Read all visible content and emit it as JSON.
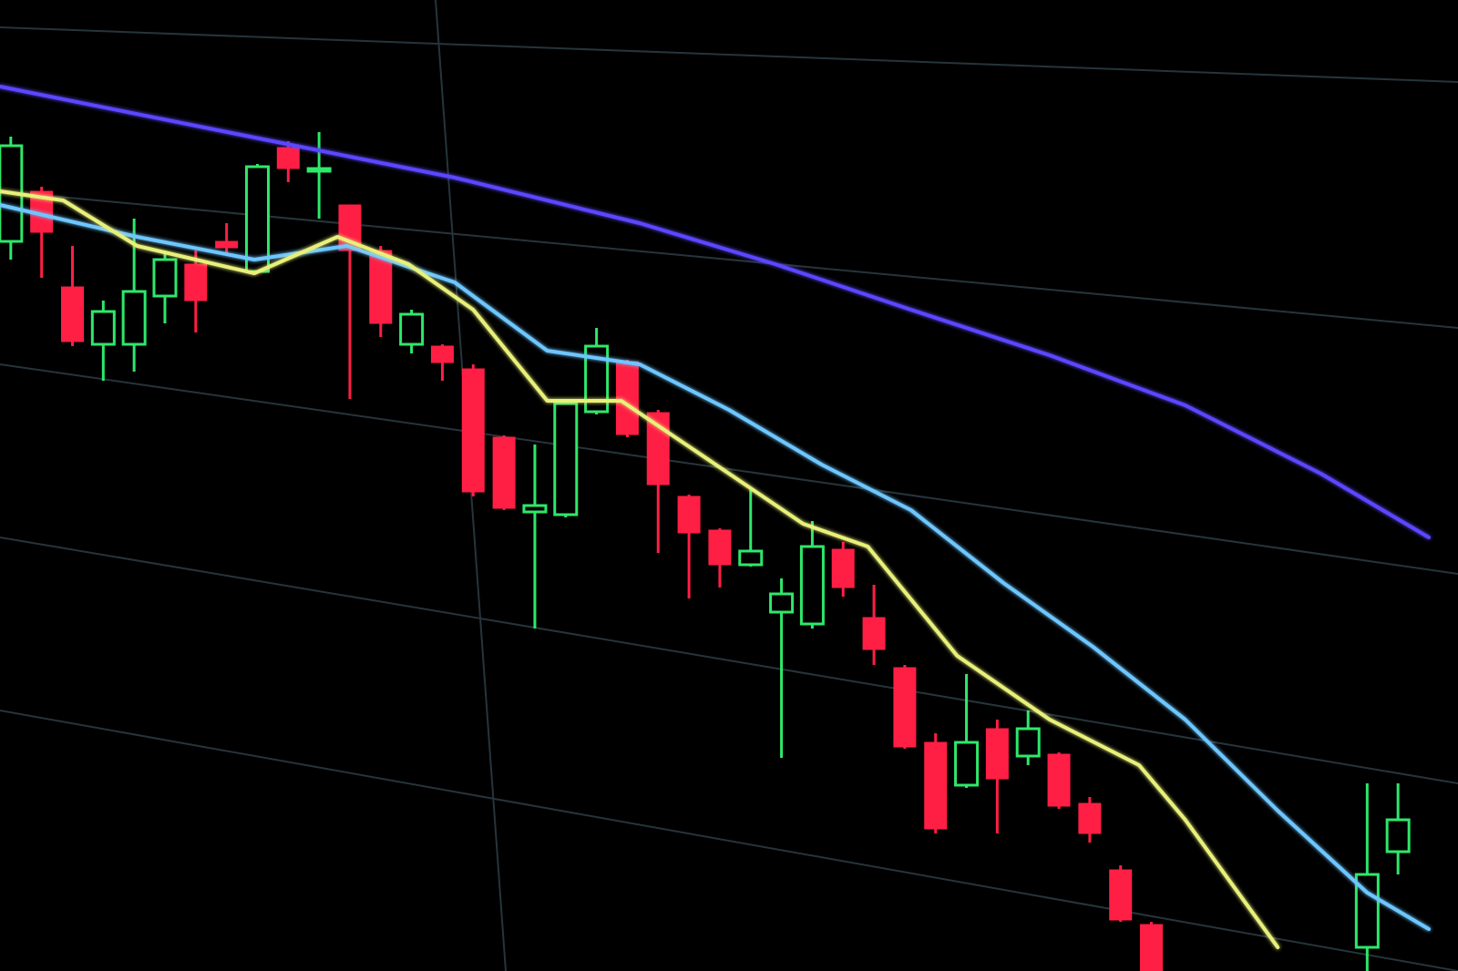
{
  "chart_data": {
    "type": "candlestick",
    "up_color": "#2ee86a",
    "down_color": "#ff1f45",
    "xlim": [
      -0.35,
      46
    ],
    "ylim": [
      0,
      1066
    ],
    "x": [
      0,
      1,
      2,
      3,
      4,
      5,
      6,
      7,
      8,
      9,
      10,
      11,
      12,
      13,
      14,
      15,
      16,
      17,
      18,
      19,
      20,
      21,
      22,
      23,
      24,
      25,
      26,
      27,
      28,
      29,
      30,
      31,
      32,
      33,
      34,
      35,
      36,
      37,
      44,
      45
    ],
    "open": [
      801,
      856,
      751,
      688,
      688,
      741,
      776,
      801,
      768,
      904,
      878,
      841,
      791,
      688,
      686,
      661,
      586,
      504,
      501,
      614,
      669,
      613,
      521,
      484,
      446,
      394,
      381,
      463,
      388,
      333,
      251,
      204,
      266,
      236,
      238,
      184,
      111,
      51,
      26,
      131
    ],
    "high": [
      916,
      861,
      796,
      736,
      826,
      791,
      791,
      821,
      886,
      911,
      921,
      841,
      796,
      726,
      688,
      666,
      588,
      578,
      626,
      706,
      671,
      616,
      523,
      486,
      531,
      431,
      494,
      471,
      424,
      336,
      261,
      326,
      276,
      286,
      240,
      191,
      116,
      54,
      206,
      206
    ],
    "low": [
      781,
      761,
      686,
      648,
      658,
      711,
      701,
      786,
      766,
      866,
      826,
      628,
      696,
      678,
      648,
      521,
      506,
      376,
      498,
      611,
      586,
      459,
      409,
      421,
      444,
      234,
      376,
      411,
      336,
      244,
      151,
      201,
      151,
      226,
      178,
      141,
      54,
      0,
      0,
      106
    ],
    "close": [
      906,
      811,
      691,
      724,
      746,
      781,
      736,
      794,
      883,
      881,
      881,
      791,
      711,
      721,
      668,
      526,
      508,
      511,
      623,
      686,
      589,
      534,
      481,
      446,
      461,
      414,
      466,
      421,
      353,
      246,
      156,
      251,
      211,
      266,
      181,
      151,
      56,
      0,
      106,
      166
    ],
    "lines": [
      {
        "color": "#5b46ff",
        "x": [
          -0.35,
          8.5,
          14.4,
          20.4,
          24.8,
          29.2,
          33.7,
          38.1,
          42.5,
          46
        ],
        "values": [
          971,
          911,
          871,
          821,
          776,
          726,
          676,
          621,
          546,
          476
        ]
      },
      {
        "color": "#6ec6ff",
        "x": [
          -0.35,
          4.1,
          7.9,
          10.9,
          14.4,
          17.4,
          20.4,
          23.3,
          26.3,
          29.2,
          32.2,
          35.1,
          38.1,
          41.1,
          44,
          46
        ],
        "values": [
          841,
          806,
          781,
          796,
          756,
          681,
          666,
          616,
          556,
          506,
          426,
          356,
          276,
          176,
          86,
          46
        ]
      },
      {
        "color": "#e8f07a",
        "x": [
          -0.35,
          1.7,
          4.1,
          7.9,
          10.6,
          12.9,
          15,
          17.4,
          19.8,
          23.3,
          25.7,
          27.8,
          30.7,
          33.7,
          36.6,
          38.1,
          41.1
        ],
        "values": [
          856,
          846,
          796,
          766,
          806,
          776,
          726,
          626,
          626,
          546,
          491,
          466,
          346,
          276,
          226,
          166,
          26
        ]
      }
    ]
  }
}
